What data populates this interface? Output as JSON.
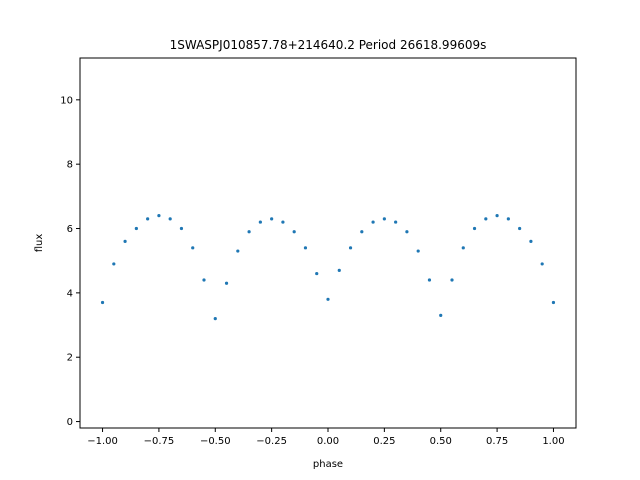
{
  "chart_data": {
    "type": "scatter",
    "title": "1SWASPJ010857.78+214640.2 Period 26618.99609s",
    "xlabel": "phase",
    "ylabel": "flux",
    "xlim": [
      -1.1,
      1.1
    ],
    "ylim": [
      -0.2,
      11.3
    ],
    "x_ticks": [
      -1.0,
      -0.75,
      -0.5,
      -0.25,
      0.0,
      0.25,
      0.5,
      0.75,
      1.0
    ],
    "x_tick_labels": [
      "−1.00",
      "−0.75",
      "−0.50",
      "−0.25",
      "0.00",
      "0.25",
      "0.50",
      "0.75",
      "1.00"
    ],
    "y_ticks": [
      0,
      2,
      4,
      6,
      8,
      10
    ],
    "y_tick_labels": [
      "0",
      "2",
      "4",
      "6",
      "8",
      "10"
    ],
    "grid": false,
    "legend": "none",
    "point_color": "#1f77b4",
    "series": [
      {
        "name": "",
        "description_of_shape": "",
        "x": [
          -1.0,
          -0.95,
          -0.9,
          -0.85,
          -0.8,
          -0.75,
          -0.7,
          -0.65,
          -0.6,
          -0.55,
          -0.5,
          -0.45,
          -0.4,
          -0.35,
          -0.3,
          -0.25,
          -0.2,
          -0.15,
          -0.1,
          -0.05,
          0.0,
          0.05,
          0.1,
          0.15,
          0.2,
          0.25,
          0.3,
          0.35,
          0.4,
          0.45,
          0.5,
          0.55,
          0.6,
          0.65,
          0.7,
          0.75,
          0.8,
          0.85,
          0.9,
          0.95,
          1.0
        ],
        "y": [
          3.7,
          4.9,
          5.6,
          6.0,
          6.3,
          6.4,
          6.3,
          6.0,
          5.4,
          4.4,
          3.2,
          4.3,
          5.3,
          5.9,
          6.2,
          6.3,
          6.2,
          5.9,
          5.4,
          4.6,
          3.8,
          4.7,
          5.4,
          5.9,
          6.2,
          6.3,
          6.2,
          5.9,
          5.3,
          4.4,
          3.3,
          4.4,
          5.4,
          6.0,
          6.3,
          6.4,
          6.3,
          6.0,
          5.6,
          4.9,
          3.7
        ]
      }
    ]
  }
}
